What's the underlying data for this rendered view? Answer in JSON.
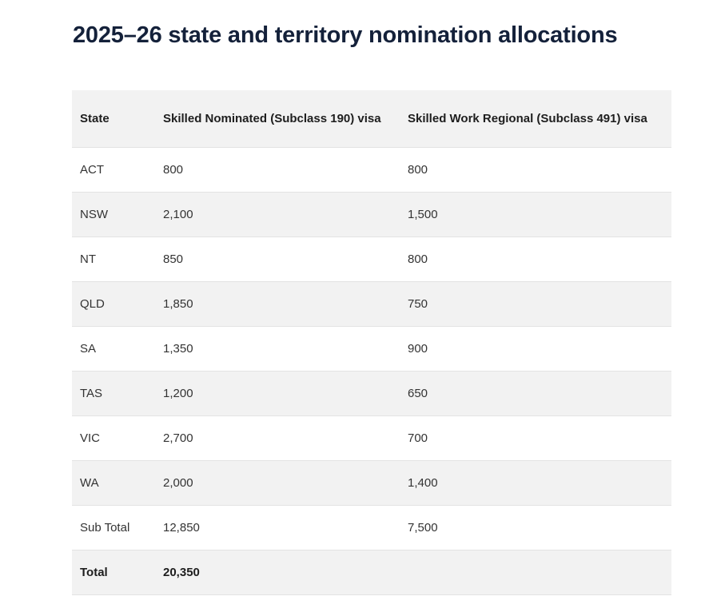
{
  "page": {
    "title": "2025–26 state and territory nomination allocations"
  },
  "table": {
    "headers": [
      "State",
      "Skilled Nominated (Subclass 190) visa",
      "Skilled Work Regional (Subclass 491) visa"
    ],
    "rows": [
      [
        "ACT",
        "800",
        "800"
      ],
      [
        "NSW",
        "2,100",
        "1,500"
      ],
      [
        "NT",
        "850",
        "800"
      ],
      [
        "QLD",
        "1,850",
        "750"
      ],
      [
        "SA",
        "1,350",
        "900"
      ],
      [
        "TAS",
        "1,200",
        "650"
      ],
      [
        "VIC",
        "2,700",
        "700"
      ],
      [
        "WA",
        "2,000",
        "1,400"
      ],
      [
        "Sub Total",
        "12,850",
        "7,500"
      ]
    ],
    "total": [
      "Total",
      "20,350",
      ""
    ]
  }
}
